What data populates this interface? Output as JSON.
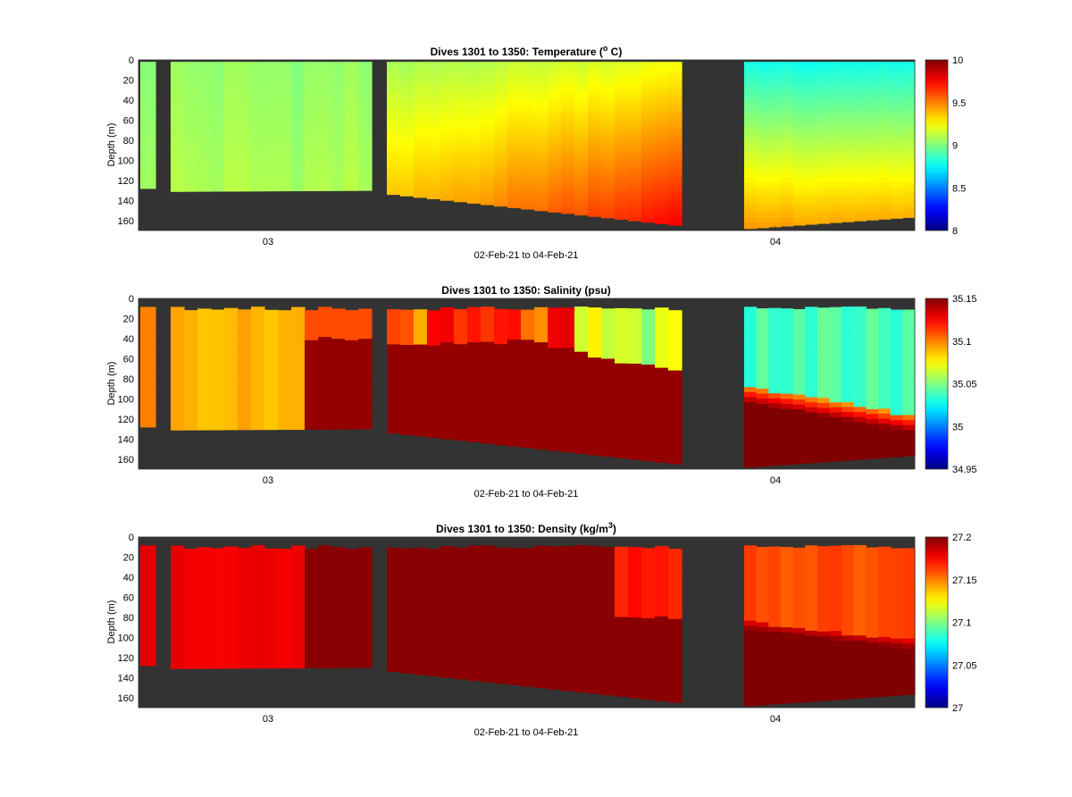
{
  "figure": {
    "background": "#ffffff",
    "no_data_color": "#333333"
  },
  "chart_data": [
    {
      "type": "heatmap",
      "title_main": "Dives 1301 to 1350: Temperature (",
      "title_super": "o",
      "title_end": " C)",
      "xlabel": "02-Feb-21 to 04-Feb-21",
      "ylabel": "Depth (m)",
      "x_ticks": [
        "03",
        "04"
      ],
      "y_ticks": [
        "0",
        "20",
        "40",
        "60",
        "80",
        "100",
        "120",
        "140",
        "160"
      ],
      "ylim": [
        0,
        170
      ],
      "y_reversed": true,
      "colormap": "jet",
      "clim": [
        8,
        10
      ],
      "colorbar_ticks": [
        "8",
        "8.5",
        "9",
        "9.5",
        "10"
      ]
    },
    {
      "type": "heatmap",
      "title_main": "Dives 1301 to 1350: Salinity (psu)",
      "title_super": "",
      "title_end": "",
      "xlabel": "02-Feb-21 to 04-Feb-21",
      "ylabel": "Depth (m)",
      "x_ticks": [
        "03",
        "04"
      ],
      "y_ticks": [
        "0",
        "20",
        "40",
        "60",
        "80",
        "100",
        "120",
        "140",
        "160"
      ],
      "ylim": [
        0,
        170
      ],
      "y_reversed": true,
      "colormap": "jet",
      "clim": [
        34.95,
        35.15
      ],
      "colorbar_ticks": [
        "34.95",
        "35",
        "35.05",
        "35.1",
        "35.15"
      ]
    },
    {
      "type": "heatmap",
      "title_main": "Dives 1301 to 1350: Density (kg/m",
      "title_super": "3",
      "title_end": ")",
      "xlabel": "02-Feb-21 to 04-Feb-21",
      "ylabel": "Depth (m)",
      "x_ticks": [
        "03",
        "04"
      ],
      "y_ticks": [
        "0",
        "20",
        "40",
        "60",
        "80",
        "100",
        "120",
        "140",
        "160"
      ],
      "ylim": [
        0,
        170
      ],
      "y_reversed": true,
      "colormap": "jet",
      "clim": [
        27,
        27.2
      ],
      "colorbar_ticks": [
        "27",
        "27.05",
        "27.1",
        "27.15",
        "27.2"
      ]
    }
  ]
}
